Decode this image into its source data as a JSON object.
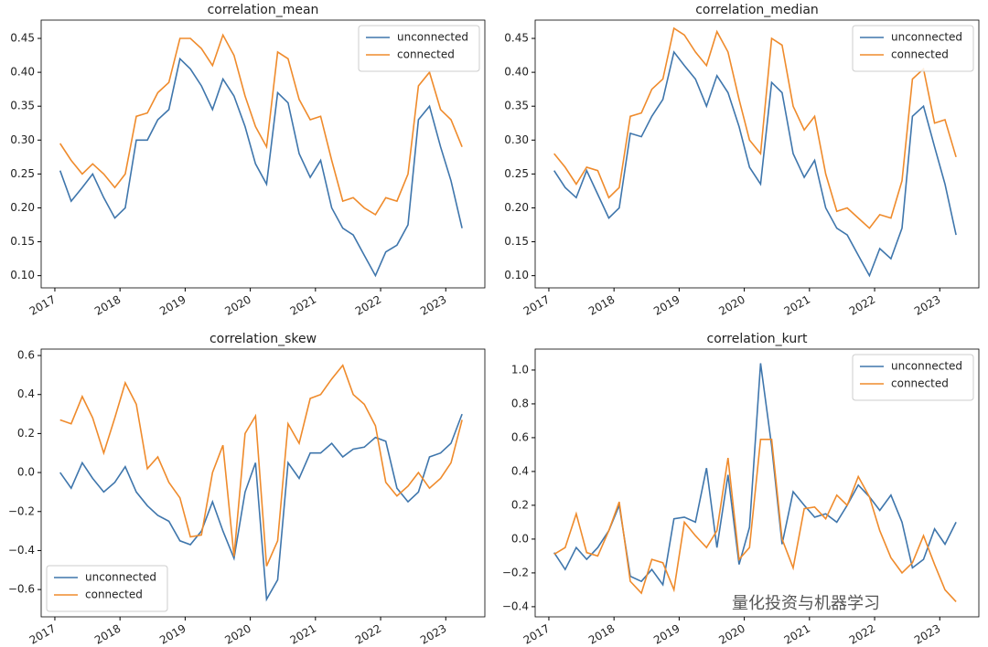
{
  "chart_data": [
    {
      "type": "line",
      "title": "correlation_mean",
      "x": [
        2017.08,
        2017.25,
        2017.42,
        2017.58,
        2017.75,
        2017.92,
        2018.08,
        2018.25,
        2018.42,
        2018.58,
        2018.75,
        2018.92,
        2019.08,
        2019.25,
        2019.42,
        2019.58,
        2019.75,
        2019.92,
        2020.08,
        2020.25,
        2020.42,
        2020.58,
        2020.75,
        2020.92,
        2021.08,
        2021.25,
        2021.42,
        2021.58,
        2021.75,
        2021.92,
        2022.08,
        2022.25,
        2022.42,
        2022.58,
        2022.75,
        2022.92,
        2023.08,
        2023.25
      ],
      "series": [
        {
          "name": "unconnected",
          "color": "#3f76ac",
          "values": [
            0.255,
            0.21,
            0.23,
            0.25,
            0.215,
            0.185,
            0.2,
            0.3,
            0.3,
            0.33,
            0.345,
            0.42,
            0.405,
            0.38,
            0.345,
            0.39,
            0.365,
            0.32,
            0.265,
            0.235,
            0.37,
            0.355,
            0.28,
            0.245,
            0.27,
            0.2,
            0.17,
            0.16,
            0.13,
            0.1,
            0.135,
            0.145,
            0.175,
            0.33,
            0.35,
            0.29,
            0.24,
            0.17
          ]
        },
        {
          "name": "connected",
          "color": "#ef8b2c",
          "values": [
            0.295,
            0.27,
            0.25,
            0.265,
            0.25,
            0.23,
            0.25,
            0.335,
            0.34,
            0.37,
            0.385,
            0.45,
            0.45,
            0.435,
            0.41,
            0.455,
            0.425,
            0.365,
            0.32,
            0.29,
            0.43,
            0.42,
            0.36,
            0.33,
            0.335,
            0.27,
            0.21,
            0.215,
            0.2,
            0.19,
            0.215,
            0.21,
            0.25,
            0.38,
            0.4,
            0.345,
            0.33,
            0.29
          ]
        }
      ],
      "xlim": [
        2016.79,
        2023.6
      ],
      "xticks": [
        2017,
        2018,
        2019,
        2020,
        2021,
        2022,
        2023
      ],
      "ylim": [
        0.082,
        0.477
      ],
      "yticks": [
        {
          "value": 0.1,
          "label": "0.10"
        },
        {
          "value": 0.15,
          "label": "0.15"
        },
        {
          "value": 0.2,
          "label": "0.20"
        },
        {
          "value": 0.25,
          "label": "0.25"
        },
        {
          "value": 0.3,
          "label": "0.30"
        },
        {
          "value": 0.35,
          "label": "0.35"
        },
        {
          "value": 0.4,
          "label": "0.40"
        },
        {
          "value": 0.45,
          "label": "0.45"
        }
      ],
      "legend": "upper right"
    },
    {
      "type": "line",
      "title": "correlation_median",
      "x": [
        2017.08,
        2017.25,
        2017.42,
        2017.58,
        2017.75,
        2017.92,
        2018.08,
        2018.25,
        2018.42,
        2018.58,
        2018.75,
        2018.92,
        2019.08,
        2019.25,
        2019.42,
        2019.58,
        2019.75,
        2019.92,
        2020.08,
        2020.25,
        2020.42,
        2020.58,
        2020.75,
        2020.92,
        2021.08,
        2021.25,
        2021.42,
        2021.58,
        2021.75,
        2021.92,
        2022.08,
        2022.25,
        2022.42,
        2022.58,
        2022.75,
        2022.92,
        2023.08,
        2023.25
      ],
      "series": [
        {
          "name": "unconnected",
          "color": "#3f76ac",
          "values": [
            0.255,
            0.23,
            0.215,
            0.255,
            0.22,
            0.185,
            0.2,
            0.31,
            0.305,
            0.335,
            0.36,
            0.43,
            0.41,
            0.39,
            0.35,
            0.395,
            0.37,
            0.32,
            0.26,
            0.235,
            0.385,
            0.37,
            0.28,
            0.245,
            0.27,
            0.2,
            0.17,
            0.16,
            0.13,
            0.1,
            0.14,
            0.125,
            0.17,
            0.335,
            0.35,
            0.29,
            0.235,
            0.16
          ]
        },
        {
          "name": "connected",
          "color": "#ef8b2c",
          "values": [
            0.28,
            0.26,
            0.235,
            0.26,
            0.255,
            0.215,
            0.23,
            0.335,
            0.34,
            0.375,
            0.39,
            0.465,
            0.455,
            0.43,
            0.41,
            0.46,
            0.43,
            0.36,
            0.3,
            0.28,
            0.45,
            0.44,
            0.35,
            0.315,
            0.335,
            0.25,
            0.195,
            0.2,
            0.185,
            0.17,
            0.19,
            0.185,
            0.24,
            0.39,
            0.405,
            0.325,
            0.33,
            0.275
          ]
        }
      ],
      "xlim": [
        2016.79,
        2023.6
      ],
      "xticks": [
        2017,
        2018,
        2019,
        2020,
        2021,
        2022,
        2023
      ],
      "ylim": [
        0.082,
        0.477
      ],
      "yticks": [
        {
          "value": 0.1,
          "label": "0.10"
        },
        {
          "value": 0.15,
          "label": "0.15"
        },
        {
          "value": 0.2,
          "label": "0.20"
        },
        {
          "value": 0.25,
          "label": "0.25"
        },
        {
          "value": 0.3,
          "label": "0.30"
        },
        {
          "value": 0.35,
          "label": "0.35"
        },
        {
          "value": 0.4,
          "label": "0.40"
        },
        {
          "value": 0.45,
          "label": "0.45"
        }
      ],
      "legend": "upper right"
    },
    {
      "type": "line",
      "title": "correlation_skew",
      "x": [
        2017.08,
        2017.25,
        2017.42,
        2017.58,
        2017.75,
        2017.92,
        2018.08,
        2018.25,
        2018.42,
        2018.58,
        2018.75,
        2018.92,
        2019.08,
        2019.25,
        2019.42,
        2019.58,
        2019.75,
        2019.92,
        2020.08,
        2020.25,
        2020.42,
        2020.58,
        2020.75,
        2020.92,
        2021.08,
        2021.25,
        2021.42,
        2021.58,
        2021.75,
        2021.92,
        2022.08,
        2022.25,
        2022.42,
        2022.58,
        2022.75,
        2022.92,
        2023.08,
        2023.25
      ],
      "series": [
        {
          "name": "unconnected",
          "color": "#3f76ac",
          "values": [
            0.0,
            -0.08,
            0.05,
            -0.03,
            -0.1,
            -0.05,
            0.03,
            -0.1,
            -0.17,
            -0.22,
            -0.25,
            -0.35,
            -0.37,
            -0.3,
            -0.15,
            -0.3,
            -0.44,
            -0.1,
            0.05,
            -0.65,
            -0.55,
            0.05,
            -0.03,
            0.1,
            0.1,
            0.15,
            0.08,
            0.12,
            0.13,
            0.18,
            0.16,
            -0.08,
            -0.15,
            -0.1,
            0.08,
            0.1,
            0.15,
            0.3
          ]
        },
        {
          "name": "connected",
          "color": "#ef8b2c",
          "values": [
            0.27,
            0.25,
            0.39,
            0.28,
            0.1,
            0.28,
            0.46,
            0.35,
            0.02,
            0.08,
            -0.05,
            -0.13,
            -0.33,
            -0.32,
            0.0,
            0.14,
            -0.43,
            0.2,
            0.29,
            -0.48,
            -0.35,
            0.25,
            0.15,
            0.38,
            0.4,
            0.48,
            0.55,
            0.4,
            0.35,
            0.24,
            -0.05,
            -0.12,
            -0.07,
            0.0,
            -0.08,
            -0.03,
            0.05,
            0.27
          ]
        }
      ],
      "xlim": [
        2016.79,
        2023.6
      ],
      "xticks": [
        2017,
        2018,
        2019,
        2020,
        2021,
        2022,
        2023
      ],
      "ylim": [
        -0.74,
        0.633
      ],
      "yticks": [
        {
          "value": -0.6,
          "label": "−0.6"
        },
        {
          "value": -0.4,
          "label": "−0.4"
        },
        {
          "value": -0.2,
          "label": "−0.2"
        },
        {
          "value": 0,
          "label": "0.0"
        },
        0.2,
        0.4,
        0.6
      ],
      "legend": "lower left"
    },
    {
      "type": "line",
      "title": "correlation_kurt",
      "x": [
        2017.08,
        2017.25,
        2017.42,
        2017.58,
        2017.75,
        2017.92,
        2018.08,
        2018.25,
        2018.42,
        2018.58,
        2018.75,
        2018.92,
        2019.08,
        2019.25,
        2019.42,
        2019.58,
        2019.75,
        2019.92,
        2020.08,
        2020.25,
        2020.42,
        2020.58,
        2020.75,
        2020.92,
        2021.08,
        2021.25,
        2021.42,
        2021.58,
        2021.75,
        2021.92,
        2022.08,
        2022.25,
        2022.42,
        2022.58,
        2022.75,
        2022.92,
        2023.08,
        2023.25
      ],
      "series": [
        {
          "name": "unconnected",
          "color": "#3f76ac",
          "values": [
            -0.08,
            -0.18,
            -0.05,
            -0.12,
            -0.05,
            0.05,
            0.2,
            -0.22,
            -0.25,
            -0.18,
            -0.27,
            0.12,
            0.13,
            0.1,
            0.42,
            -0.05,
            0.38,
            -0.15,
            0.07,
            1.04,
            0.55,
            -0.03,
            0.28,
            0.2,
            0.13,
            0.15,
            0.1,
            0.2,
            0.32,
            0.25,
            0.17,
            0.26,
            0.1,
            -0.17,
            -0.12,
            0.06,
            -0.03,
            0.1
          ]
        },
        {
          "name": "connected",
          "color": "#ef8b2c",
          "values": [
            -0.09,
            -0.05,
            0.15,
            -0.08,
            -0.1,
            0.05,
            0.22,
            -0.25,
            -0.32,
            -0.12,
            -0.14,
            -0.3,
            0.1,
            0.02,
            -0.05,
            0.05,
            0.48,
            -0.12,
            -0.05,
            0.59,
            0.59,
            0.0,
            -0.17,
            0.18,
            0.19,
            0.12,
            0.26,
            0.2,
            0.37,
            0.25,
            0.05,
            -0.11,
            -0.2,
            -0.14,
            0.02,
            -0.15,
            -0.3,
            -0.37
          ]
        }
      ],
      "xlim": [
        2016.79,
        2023.6
      ],
      "xticks": [
        2017,
        2018,
        2019,
        2020,
        2021,
        2022,
        2023
      ],
      "ylim": [
        -0.46,
        1.124
      ],
      "yticks": [
        {
          "value": -0.4,
          "label": "−0.4"
        },
        {
          "value": -0.2,
          "label": "−0.2"
        },
        {
          "value": 0,
          "label": "0.0"
        },
        0.2,
        0.4,
        0.6,
        0.8,
        {
          "value": 1,
          "label": "1.0"
        }
      ],
      "legend": "upper right"
    }
  ],
  "watermark": "量化投资与机器学习"
}
